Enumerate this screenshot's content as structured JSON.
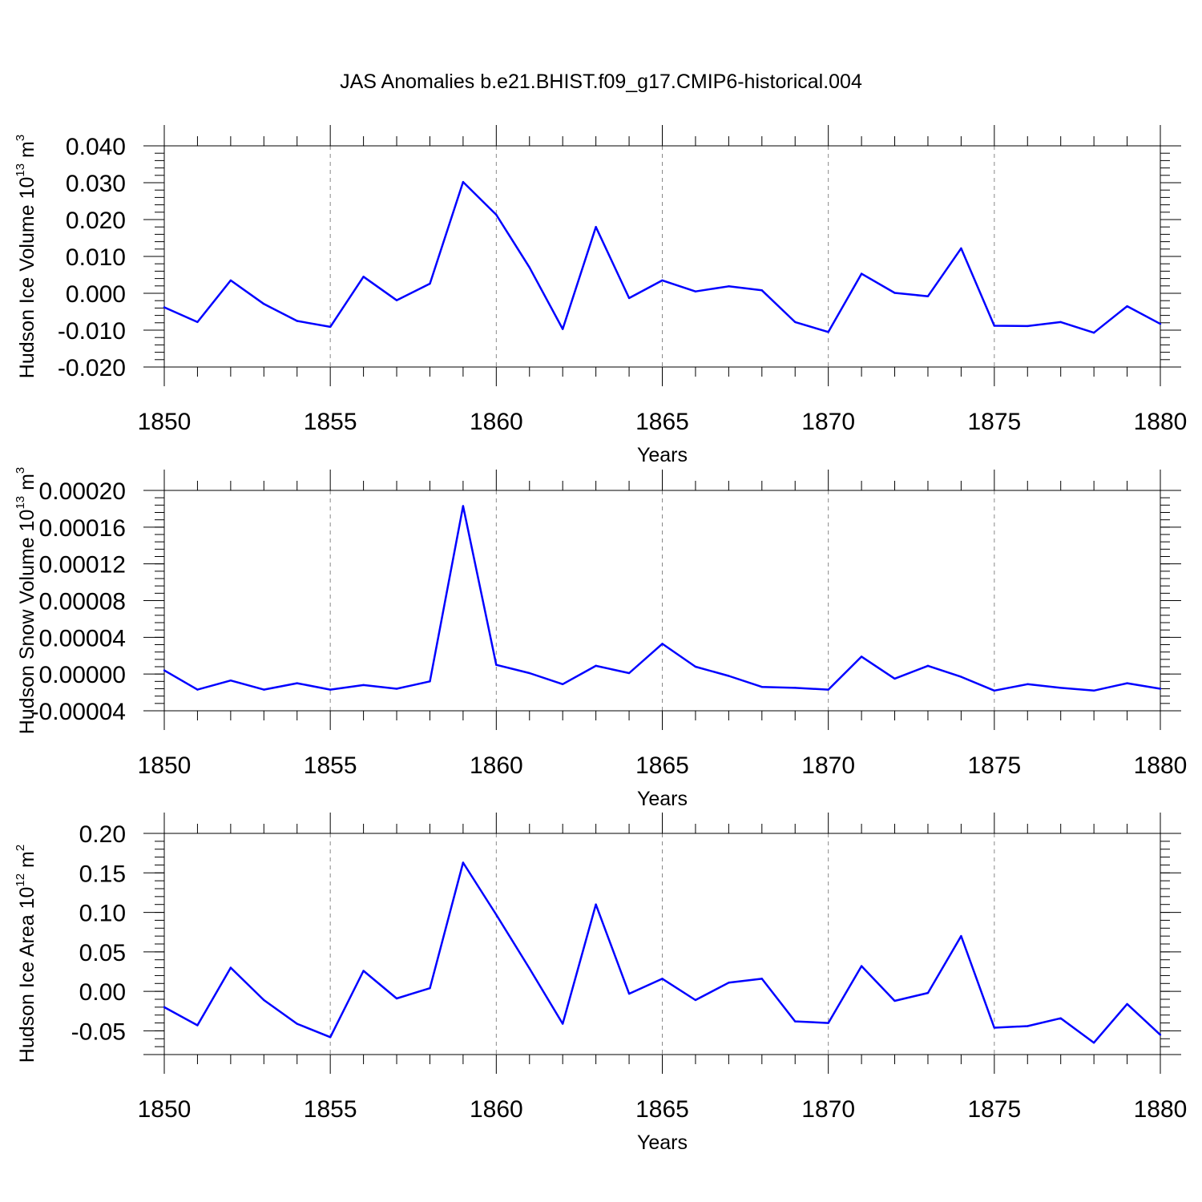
{
  "title": "JAS Anomalies b.e21.BHIST.f09_g17.CMIP6-historical.004",
  "series_color": "#0000ff",
  "chart_data": [
    {
      "type": "line",
      "title": "JAS Anomalies b.e21.BHIST.f09_g17.CMIP6-historical.004",
      "xlabel": "Years",
      "ylabel_main": "Hudson Ice Volume 10",
      "ylabel_exp": "13",
      "ylabel_unit": " m",
      "ylabel_unit_exp": "3",
      "xlim": [
        1850,
        1880
      ],
      "ylim": [
        -0.02,
        0.04
      ],
      "x_ticks": [
        1850,
        1855,
        1860,
        1865,
        1870,
        1875,
        1880
      ],
      "y_ticks": [
        -0.02,
        -0.01,
        0.0,
        0.01,
        0.02,
        0.03,
        0.04
      ],
      "y_tick_labels": [
        "-0.020",
        "-0.010",
        "0.000",
        "0.010",
        "0.020",
        "0.030",
        "0.040"
      ],
      "grid": "vertical dashed at major x ticks",
      "x": [
        1850,
        1851,
        1852,
        1853,
        1854,
        1855,
        1856,
        1857,
        1858,
        1859,
        1860,
        1861,
        1862,
        1863,
        1864,
        1865,
        1866,
        1867,
        1868,
        1869,
        1870,
        1871,
        1872,
        1873,
        1874,
        1875,
        1876,
        1877,
        1878,
        1879,
        1880
      ],
      "values": [
        -0.0038,
        -0.0078,
        0.0035,
        -0.0029,
        -0.0075,
        -0.0091,
        0.0045,
        -0.0019,
        0.0026,
        0.0302,
        0.0213,
        0.007,
        -0.0097,
        0.018,
        -0.0013,
        0.0035,
        0.0005,
        0.0019,
        0.0008,
        -0.0078,
        -0.0105,
        0.0053,
        0.0001,
        -0.0008,
        0.0122,
        -0.0088,
        -0.0089,
        -0.0078,
        -0.0107,
        -0.0035,
        -0.0083
      ]
    },
    {
      "type": "line",
      "xlabel": "Years",
      "ylabel_main": "Hudson Snow Volume 10",
      "ylabel_exp": "13",
      "ylabel_unit": " m",
      "ylabel_unit_exp": "3",
      "xlim": [
        1850,
        1880
      ],
      "ylim": [
        -4e-05,
        0.0002
      ],
      "x_ticks": [
        1850,
        1855,
        1860,
        1865,
        1870,
        1875,
        1880
      ],
      "y_ticks": [
        -4e-05,
        0.0,
        4e-05,
        8e-05,
        0.00012,
        0.00016,
        0.0002
      ],
      "y_tick_labels": [
        "-0.00004",
        "0.00000",
        "0.00004",
        "0.00008",
        "0.00012",
        "0.00016",
        "0.00020"
      ],
      "grid": "vertical dashed at major x ticks",
      "x": [
        1850,
        1851,
        1852,
        1853,
        1854,
        1855,
        1856,
        1857,
        1858,
        1859,
        1860,
        1861,
        1862,
        1863,
        1864,
        1865,
        1866,
        1867,
        1868,
        1869,
        1870,
        1871,
        1872,
        1873,
        1874,
        1875,
        1876,
        1877,
        1878,
        1879,
        1880
      ],
      "values": [
        4e-06,
        -1.7e-05,
        -7e-06,
        -1.7e-05,
        -1e-05,
        -1.7e-05,
        -1.2e-05,
        -1.6e-05,
        -8e-06,
        0.000183,
        1e-05,
        1e-06,
        -1.1e-05,
        9e-06,
        1e-06,
        3.3e-05,
        8e-06,
        -2e-06,
        -1.4e-05,
        -1.5e-05,
        -1.7e-05,
        1.9e-05,
        -5e-06,
        9e-06,
        -3e-06,
        -1.8e-05,
        -1.1e-05,
        -1.5e-05,
        -1.8e-05,
        -1e-05,
        -1.6e-05
      ]
    },
    {
      "type": "line",
      "xlabel": "Years",
      "ylabel_main": "Hudson Ice Area 10",
      "ylabel_exp": "12",
      "ylabel_unit": " m",
      "ylabel_unit_exp": "2",
      "xlim": [
        1850,
        1880
      ],
      "ylim": [
        -0.08,
        0.2
      ],
      "x_ticks": [
        1850,
        1855,
        1860,
        1865,
        1870,
        1875,
        1880
      ],
      "y_ticks": [
        -0.05,
        0.0,
        0.05,
        0.1,
        0.15,
        0.2
      ],
      "y_tick_labels": [
        "-0.05",
        "0.00",
        "0.05",
        "0.10",
        "0.15",
        "0.20"
      ],
      "grid": "vertical dashed at major x ticks",
      "x": [
        1850,
        1851,
        1852,
        1853,
        1854,
        1855,
        1856,
        1857,
        1858,
        1859,
        1860,
        1861,
        1862,
        1863,
        1864,
        1865,
        1866,
        1867,
        1868,
        1869,
        1870,
        1871,
        1872,
        1873,
        1874,
        1875,
        1876,
        1877,
        1878,
        1879,
        1880
      ],
      "values": [
        -0.02,
        -0.043,
        0.03,
        -0.011,
        -0.041,
        -0.058,
        0.026,
        -0.009,
        0.004,
        0.163,
        0.097,
        0.029,
        -0.041,
        0.11,
        -0.003,
        0.016,
        -0.011,
        0.011,
        0.016,
        -0.038,
        -0.04,
        0.032,
        -0.012,
        -0.002,
        0.07,
        -0.046,
        -0.044,
        -0.034,
        -0.065,
        -0.016,
        -0.055
      ]
    }
  ]
}
